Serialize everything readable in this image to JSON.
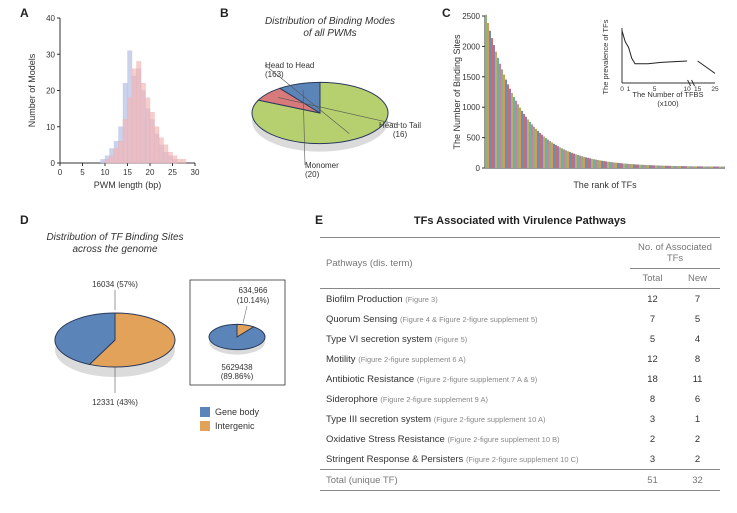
{
  "panelA": {
    "label": "A",
    "type": "histogram",
    "xlabel": "PWM length (bp)",
    "ylabel": "Number of Models",
    "xlim": [
      0,
      30
    ],
    "ylim": [
      0,
      40
    ],
    "xticks": [
      0,
      5,
      10,
      15,
      20,
      25,
      30
    ],
    "yticks": [
      0,
      10,
      20,
      30,
      40
    ],
    "bar_width": 1.0,
    "series": [
      {
        "color": "#b9c3e6",
        "opacity": 0.75,
        "data": [
          [
            9,
            1
          ],
          [
            10,
            2
          ],
          [
            11,
            4
          ],
          [
            12,
            6
          ],
          [
            13,
            10
          ],
          [
            14,
            22
          ],
          [
            15,
            31
          ],
          [
            16,
            24
          ],
          [
            17,
            26
          ],
          [
            18,
            20
          ],
          [
            19,
            15
          ],
          [
            20,
            12
          ],
          [
            21,
            8
          ],
          [
            22,
            5
          ],
          [
            23,
            3
          ],
          [
            24,
            2
          ],
          [
            25,
            1
          ]
        ]
      },
      {
        "color": "#f2b3b3",
        "opacity": 0.65,
        "data": [
          [
            10,
            1
          ],
          [
            11,
            2
          ],
          [
            12,
            4
          ],
          [
            13,
            6
          ],
          [
            14,
            12
          ],
          [
            15,
            18
          ],
          [
            16,
            26
          ],
          [
            17,
            28
          ],
          [
            18,
            22
          ],
          [
            19,
            18
          ],
          [
            20,
            14
          ],
          [
            21,
            10
          ],
          [
            22,
            7
          ],
          [
            23,
            5
          ],
          [
            24,
            3
          ],
          [
            25,
            2
          ],
          [
            26,
            1
          ],
          [
            27,
            1
          ]
        ]
      }
    ],
    "background": "#ffffff"
  },
  "panelB": {
    "label": "B",
    "type": "pie",
    "title": "Distribution of Binding Modes\nof all PWMs",
    "slices": [
      {
        "label": "Head to Head (163)",
        "value": 163,
        "color": "#b6cf6f"
      },
      {
        "label": "Head to Tail (16)",
        "value": 16,
        "color": "#d97a7a"
      },
      {
        "label": "Monomer (20)",
        "value": 20,
        "color": "#5b85b8"
      }
    ],
    "border_color": "#2a3a5c",
    "tilt": 0.45
  },
  "panelC": {
    "label": "C",
    "type": "bar_ranked_with_inset",
    "ylabel": "The Number of Binding Sites",
    "xlabel": "The rank of TFs",
    "ylim": [
      0,
      2500
    ],
    "yticks": [
      0,
      500,
      1000,
      1500,
      2000,
      2500
    ],
    "bar_count": 120,
    "bar_colors": [
      "#8fb274",
      "#d59a56",
      "#6a8db6",
      "#c86e6e",
      "#9a79b0",
      "#b5b16a",
      "#6fb19a",
      "#c77fa8"
    ],
    "decay": {
      "max": 2500,
      "shape": "exponential",
      "tail": 20
    },
    "inset": {
      "xlabel": "The Number of TFBS\n(x100)",
      "ylabel": "The prevalence of TFs",
      "xlim": [
        0,
        25
      ],
      "xticks": [
        0,
        1,
        5,
        10,
        15,
        25
      ],
      "ylim": [
        0,
        40
      ],
      "points": [
        [
          0,
          38
        ],
        [
          0.5,
          30
        ],
        [
          1,
          26
        ],
        [
          1.5,
          18
        ],
        [
          2,
          14
        ],
        [
          4,
          14
        ],
        [
          6,
          15
        ],
        [
          10,
          16
        ],
        [
          15,
          16
        ],
        [
          25,
          7
        ]
      ],
      "break_at": 10,
      "line_color": "#222"
    }
  },
  "panelD": {
    "label": "D",
    "type": "pie_with_inset",
    "title": "Distribution of TF Binding Sites\nacross the genome",
    "main_slices": [
      {
        "label": "16034 (57%)",
        "value": 57,
        "color": "#e3a25a"
      },
      {
        "label": "12331 (43%)",
        "value": 43,
        "color": "#5b85b8"
      }
    ],
    "inset_slices": [
      {
        "label": "634,966\n(10.14%)",
        "value": 10.14,
        "color": "#e3a25a"
      },
      {
        "label": "5629438\n(89.86%)",
        "value": 89.86,
        "color": "#5b85b8"
      }
    ],
    "legend": [
      {
        "color": "#5b85b8",
        "text": "Gene body"
      },
      {
        "color": "#e3a25a",
        "text": "Intergenic"
      }
    ],
    "border_color": "#2a3a5c",
    "tilt": 0.45
  },
  "panelE": {
    "label": "E",
    "title": "TFs Associated with Virulence Pathways",
    "header": {
      "path": "Pathways (dis. term)",
      "group": "No. of Associated TFs",
      "sub1": "Total",
      "sub2": "New"
    },
    "rows": [
      {
        "name": "Biofilm Production",
        "ref": "(Figure 3)",
        "total": 12,
        "new": 7
      },
      {
        "name": "Quorum Sensing",
        "ref": "(Figure 4 & Figure 2-figure supplement 5)",
        "total": 7,
        "new": 5
      },
      {
        "name": "Type VI secretion system",
        "ref": "(Figure 5)",
        "total": 5,
        "new": 4
      },
      {
        "name": "Motility",
        "ref": "(Figure 2-figure supplement 6 A)",
        "total": 12,
        "new": 8
      },
      {
        "name": "Antibiotic Resistance",
        "ref": "(Figure 2-figure supplement 7 A & 9)",
        "total": 18,
        "new": 11
      },
      {
        "name": "Siderophore",
        "ref": "(Figure 2-figure supplement 9 A)",
        "total": 8,
        "new": 6
      },
      {
        "name": "Type III secretion system",
        "ref": "(Figure 2-figure supplement 10 A)",
        "total": 3,
        "new": 1
      },
      {
        "name": "Oxidative Stress Resistance",
        "ref": "(Figure 2-figure supplement 10 B)",
        "total": 2,
        "new": 2
      },
      {
        "name": "Stringent Response & Persisters",
        "ref": "(Figure 2-figure supplement 10 C)",
        "total": 3,
        "new": 2
      }
    ],
    "totalRow": {
      "name": "Total (unique TF)",
      "total": 51,
      "new": 32
    }
  }
}
